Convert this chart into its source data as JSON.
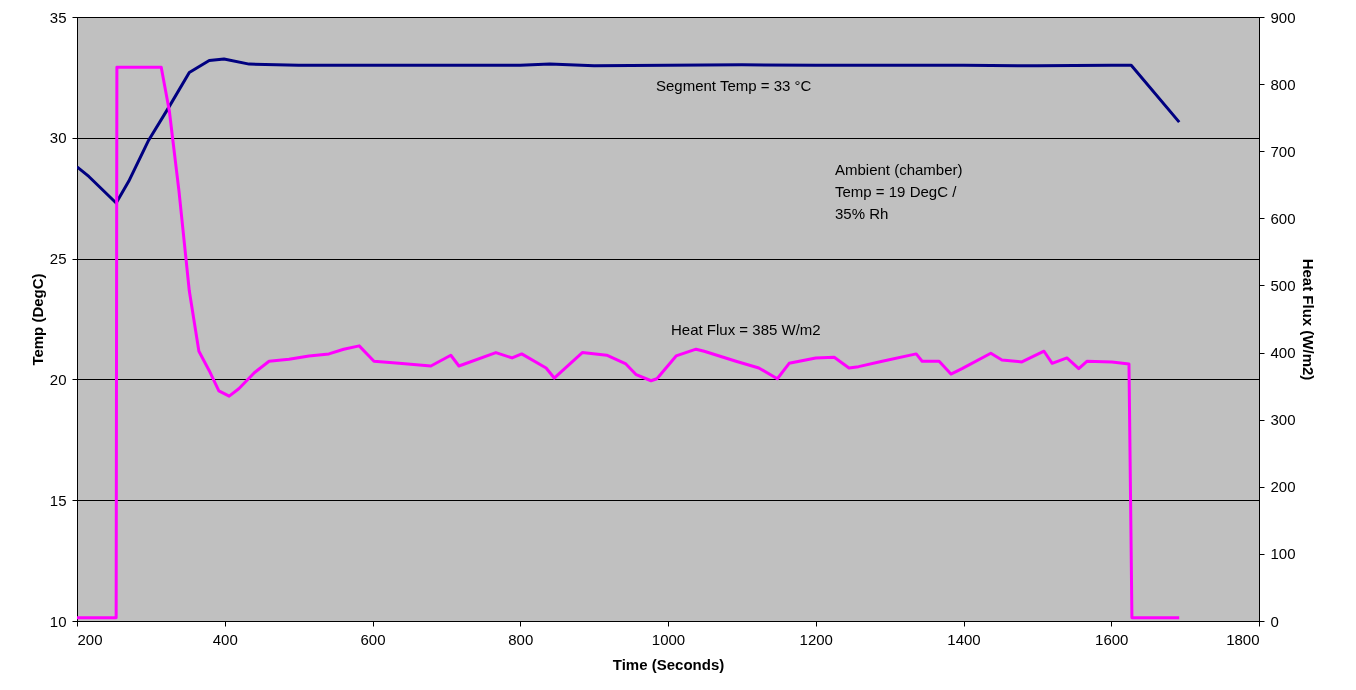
{
  "chart_data": {
    "type": "line",
    "xlabel": "Time (Seconds)",
    "ylabel": "Temp (DegC)",
    "y2label": "Heat Flux (W/m2)",
    "xlim": [
      200,
      1800
    ],
    "xticks": [
      200,
      400,
      600,
      800,
      1000,
      1200,
      1400,
      1600,
      1800
    ],
    "ylim": [
      10,
      35
    ],
    "yticks": [
      10,
      15,
      20,
      25,
      30,
      35
    ],
    "y2lim": [
      0,
      900
    ],
    "y2ticks": [
      0,
      100,
      200,
      300,
      400,
      500,
      600,
      700,
      800,
      900
    ],
    "grid": "y",
    "series": [
      {
        "color": "#000080",
        "x": [
          200,
          216,
          253,
          270,
          297,
          325,
          352,
          379,
          399,
          433,
          500,
          600,
          700,
          800,
          840,
          900,
          1000,
          1100,
          1200,
          1300,
          1400,
          1500,
          1600,
          1627,
          1692
        ],
        "values": [
          28.8,
          28.4,
          27.3,
          28.2,
          29.9,
          31.3,
          32.7,
          33.2,
          33.26,
          33.05,
          33.0,
          33.0,
          33.0,
          33.0,
          33.05,
          32.98,
          33.0,
          33.02,
          33.0,
          33.0,
          33.0,
          32.98,
          33.0,
          33.0,
          30.65
        ]
      },
      {
        "color": "#ff00ff",
        "axis": "y2",
        "x": [
          200,
          253,
          254,
          314,
          325,
          338,
          352,
          365,
          379,
          392,
          406,
          419,
          440,
          460,
          487,
          514,
          541,
          561,
          582,
          602,
          636,
          679,
          706,
          717,
          767,
          789,
          802,
          835,
          846,
          884,
          917,
          943,
          957,
          977,
          985,
          1011,
          1038,
          1049,
          1092,
          1123,
          1148,
          1164,
          1200,
          1225,
          1245,
          1258,
          1290,
          1336,
          1344,
          1367,
          1383,
          1398,
          1437,
          1452,
          1479,
          1509,
          1520,
          1540,
          1556,
          1567,
          1601,
          1624,
          1628,
          1692
        ],
        "values": [
          5,
          5,
          825,
          825,
          760,
          641,
          492,
          402,
          373,
          343,
          335,
          346,
          370,
          387,
          390,
          395,
          398,
          405,
          410,
          387,
          384,
          380,
          396,
          380,
          400,
          392,
          398,
          377,
          362,
          400,
          396,
          383,
          367,
          358,
          361,
          395,
          405,
          402,
          387,
          377,
          361,
          384,
          392,
          393,
          377,
          379,
          387,
          398,
          387,
          387,
          368,
          376,
          399,
          389,
          386,
          402,
          384,
          392,
          376,
          387,
          386,
          383,
          5,
          5
        ]
      }
    ],
    "annotations": [
      "Segment Temp = 33 °C",
      "Ambient (chamber)\nTemp = 19 DegC /\n35% Rh",
      "Heat Flux = 385 W/m2"
    ]
  }
}
